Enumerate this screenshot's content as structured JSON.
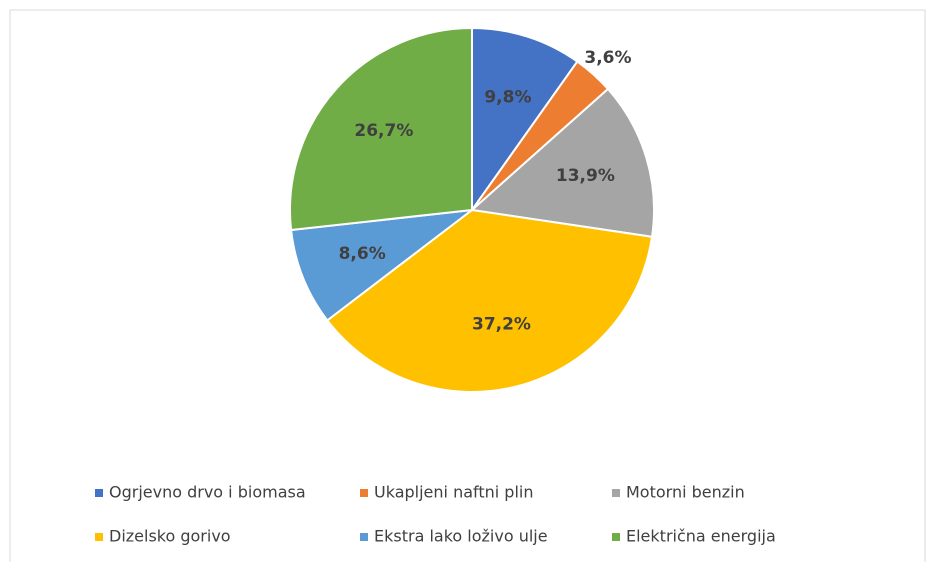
{
  "chart_data": {
    "type": "pie",
    "categories": [
      "Ogrjevno drvo i biomasa",
      "Ukapljeni naftni plin",
      "Motorni benzin",
      "Dizelsko gorivo",
      "Ekstra lako loživo ulje",
      "Električna energija"
    ],
    "values": [
      9.8,
      3.6,
      13.9,
      37.2,
      8.6,
      26.7
    ],
    "value_labels": [
      "9,8%",
      "3,6%",
      "13,9%",
      "37,2%",
      "8,6%",
      "26,7%"
    ],
    "colors": [
      "#4472c4",
      "#ed7d31",
      "#a5a5a5",
      "#ffc000",
      "#5b9bd5",
      "#70ad47"
    ],
    "legend": "bottom"
  }
}
